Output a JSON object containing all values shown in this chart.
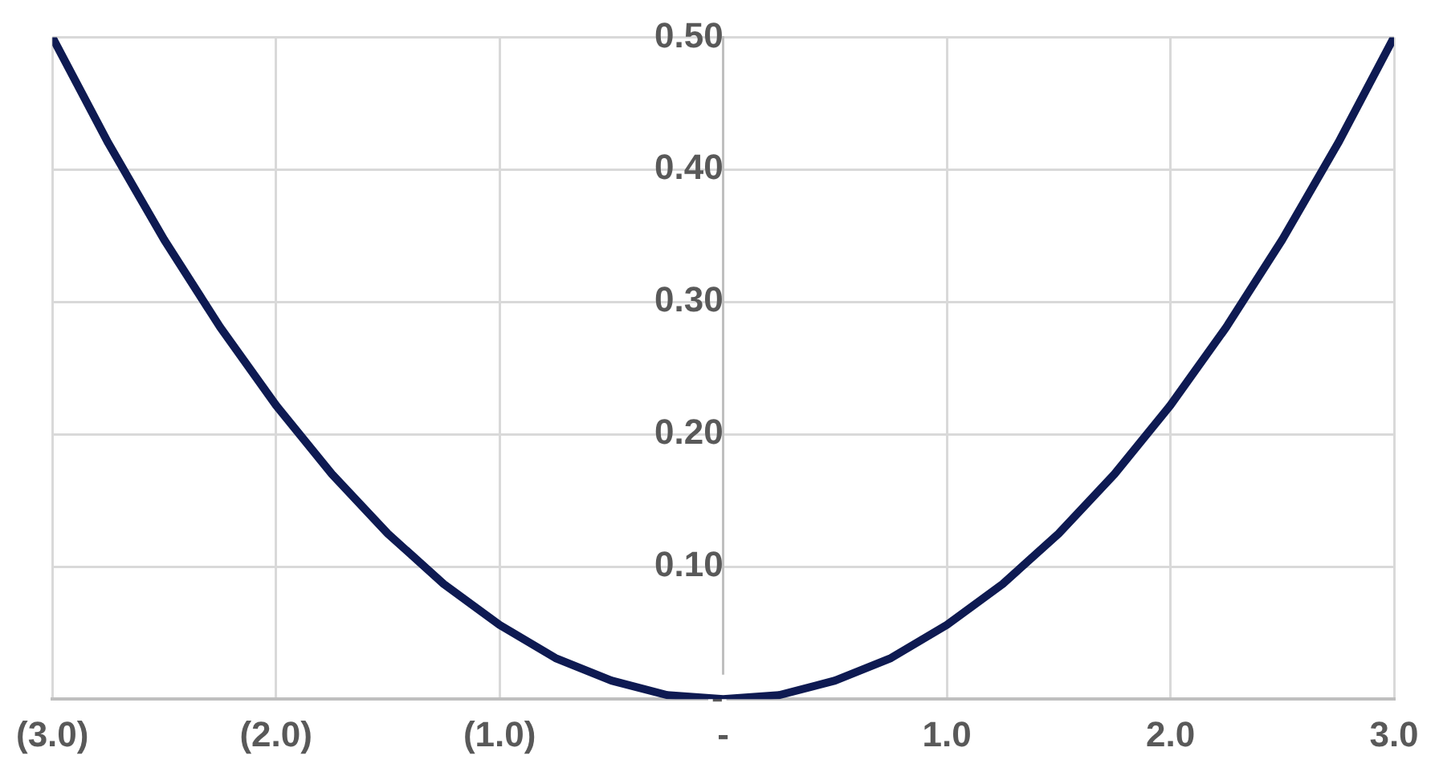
{
  "chart_data": {
    "type": "line",
    "x": [
      -3,
      -2.75,
      -2.5,
      -2.25,
      -2,
      -1.75,
      -1.5,
      -1.25,
      -1,
      -0.75,
      -0.5,
      -0.25,
      0,
      0.25,
      0.5,
      0.75,
      1,
      1.25,
      1.5,
      1.75,
      2,
      2.25,
      2.5,
      2.75,
      3
    ],
    "series": [
      {
        "color": "#0e1a52",
        "values": [
          0.5,
          0.42,
          0.347,
          0.281,
          0.222,
          0.17,
          0.125,
          0.087,
          0.056,
          0.031,
          0.014,
          0.003,
          0,
          0.003,
          0.014,
          0.031,
          0.056,
          0.087,
          0.125,
          0.17,
          0.222,
          0.281,
          0.347,
          0.42,
          0.5
        ]
      }
    ],
    "xlim": [
      -3,
      3
    ],
    "ylim": [
      0,
      0.5
    ],
    "xticks": [
      {
        "value": -3,
        "label": "(3.0)"
      },
      {
        "value": -2,
        "label": "(2.0)"
      },
      {
        "value": -1,
        "label": "(1.0)"
      },
      {
        "value": 0,
        "label": "-"
      },
      {
        "value": 1,
        "label": "1.0"
      },
      {
        "value": 2,
        "label": "2.0"
      },
      {
        "value": 3,
        "label": "3.0"
      }
    ],
    "yticks": [
      {
        "value": 0,
        "label": "-"
      },
      {
        "value": 0.1,
        "label": "0.10"
      },
      {
        "value": 0.2,
        "label": "0.20"
      },
      {
        "value": 0.3,
        "label": "0.30"
      },
      {
        "value": 0.4,
        "label": "0.40"
      },
      {
        "value": 0.5,
        "label": "0.50"
      }
    ],
    "grid": true,
    "marker": "none",
    "line_style": "solid"
  }
}
